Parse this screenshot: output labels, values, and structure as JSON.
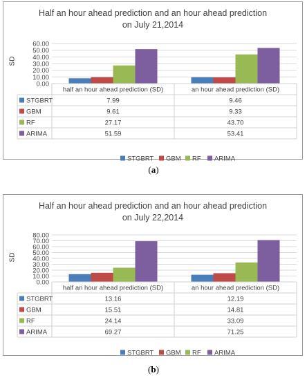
{
  "chart_data": [
    {
      "type": "bar",
      "title_line1": "Half an hour ahead prediction and an hour ahead prediction",
      "title_line2": "on July 21,2014",
      "ylabel": "SD",
      "ylim": [
        0,
        60
      ],
      "yticks": [
        "0.00",
        "10.00",
        "20.00",
        "30.00",
        "40.00",
        "50.00",
        "60.00"
      ],
      "ytick_values": [
        0,
        10,
        20,
        30,
        40,
        50,
        60
      ],
      "categories": [
        "half an hour ahead prediction (SD)",
        "an hour ahead prediction (SD)"
      ],
      "series": [
        {
          "name": "STGBRT",
          "color": "#4a7ebb",
          "values": [
            7.99,
            9.46
          ],
          "labels": [
            "7.99",
            "9.46"
          ]
        },
        {
          "name": "GBM",
          "color": "#be4b48",
          "values": [
            9.61,
            9.33
          ],
          "labels": [
            "9.61",
            "9.33"
          ]
        },
        {
          "name": "RF",
          "color": "#98b954",
          "values": [
            27.17,
            43.7
          ],
          "labels": [
            "27.17",
            "43.70"
          ]
        },
        {
          "name": "ARIMA",
          "color": "#7d5fa0",
          "values": [
            51.59,
            53.41
          ],
          "labels": [
            "51.59",
            "53.41"
          ]
        }
      ],
      "grid": true,
      "legend": "bottom"
    },
    {
      "type": "bar",
      "title_line1": "Half an hour ahead prediction and an hour ahead prediction",
      "title_line2": "on July 22,2014",
      "ylabel": "SD",
      "ylim": [
        0,
        80
      ],
      "yticks": [
        "0.00",
        "10.00",
        "20.00",
        "30.00",
        "40.00",
        "50.00",
        "60.00",
        "70.00",
        "80.00"
      ],
      "ytick_values": [
        0,
        10,
        20,
        30,
        40,
        50,
        60,
        70,
        80
      ],
      "categories": [
        "half an hour ahead prediction (SD)",
        "an hour ahead prediction (SD)"
      ],
      "series": [
        {
          "name": "STGBRT",
          "color": "#4a7ebb",
          "values": [
            13.16,
            12.19
          ],
          "labels": [
            "13.16",
            "12.19"
          ]
        },
        {
          "name": "GBM",
          "color": "#be4b48",
          "values": [
            15.51,
            14.81
          ],
          "labels": [
            "15.51",
            "14.81"
          ]
        },
        {
          "name": "RF",
          "color": "#98b954",
          "values": [
            24.14,
            33.09
          ],
          "labels": [
            "24.14",
            "33.09"
          ]
        },
        {
          "name": "ARIMA",
          "color": "#7d5fa0",
          "values": [
            69.27,
            71.25
          ],
          "labels": [
            "69.27",
            "71.25"
          ]
        }
      ],
      "grid": true,
      "legend": "bottom"
    }
  ],
  "captions": [
    {
      "letter": "a"
    },
    {
      "letter": "b"
    }
  ]
}
